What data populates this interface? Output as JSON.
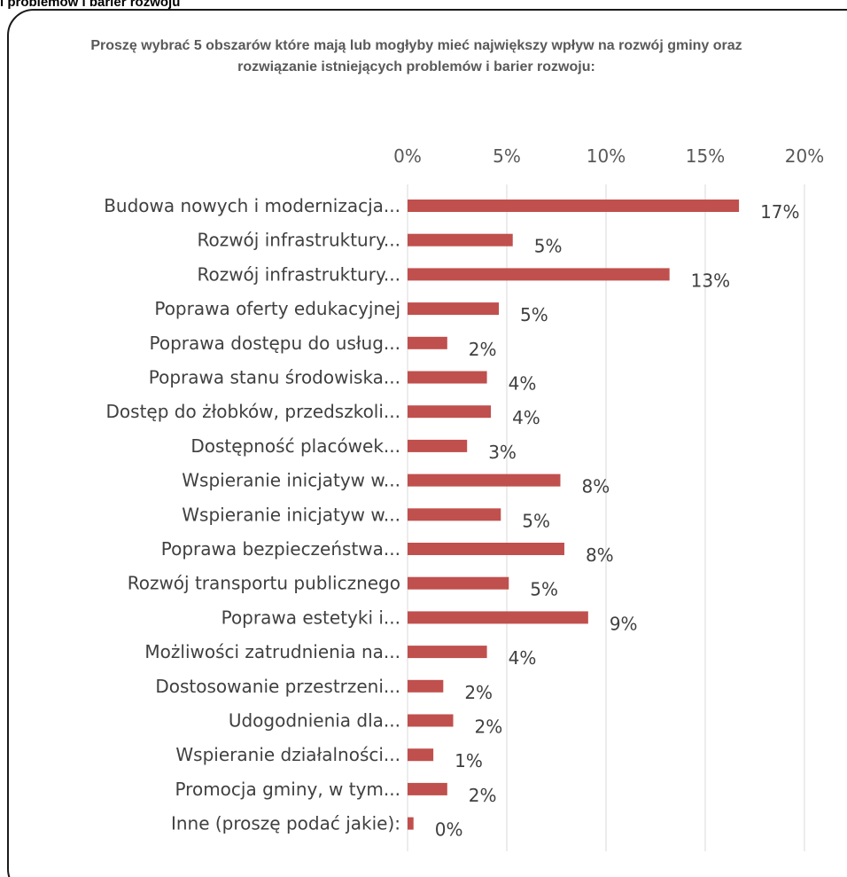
{
  "page_header": "i problemów i barier rozwoju",
  "chart_data": {
    "type": "bar",
    "orientation": "horizontal",
    "title": "Proszę wybrać 5 obszarów które mają lub mogłyby mieć największy wpływ na rozwój gminy oraz rozwiązanie istniejących problemów i barier rozwoju:",
    "xlim": [
      0,
      20
    ],
    "x_ticks": [
      "0%",
      "5%",
      "10%",
      "15%",
      "20%"
    ],
    "x_tick_values": [
      0,
      5,
      10,
      15,
      20
    ],
    "axis_position": "top",
    "grid": true,
    "bar_color": "#c0504d",
    "categories": [
      "Budowa nowych i modernizacja...",
      "Rozwój infrastruktury...",
      "Rozwój infrastruktury...",
      "Poprawa oferty edukacyjnej",
      "Poprawa dostępu do usług...",
      "Poprawa stanu środowiska...",
      "Dostęp do żłobków, przedszkoli...",
      "Dostępność placówek...",
      "Wspieranie inicjatyw w...",
      "Wspieranie inicjatyw w...",
      "Poprawa bezpieczeństwa...",
      "Rozwój transportu publicznego",
      "Poprawa estetyki i...",
      "Możliwości zatrudnienia na...",
      "Dostosowanie przestrzeni...",
      "Udogodnienia dla...",
      "Wspieranie działalności...",
      "Promocja gminy, w tym...",
      "Inne (proszę podać jakie):"
    ],
    "values": [
      16.7,
      5.3,
      13.2,
      4.6,
      2.0,
      4.0,
      4.2,
      3.0,
      7.7,
      4.7,
      7.9,
      5.1,
      9.1,
      4.0,
      1.8,
      2.3,
      1.3,
      2.0,
      0.3
    ],
    "data_labels": [
      "17%",
      "5%",
      "13%",
      "5%",
      "2%",
      "4%",
      "4%",
      "3%",
      "8%",
      "5%",
      "8%",
      "5%",
      "9%",
      "4%",
      "2%",
      "2%",
      "1%",
      "2%",
      "0%"
    ]
  }
}
